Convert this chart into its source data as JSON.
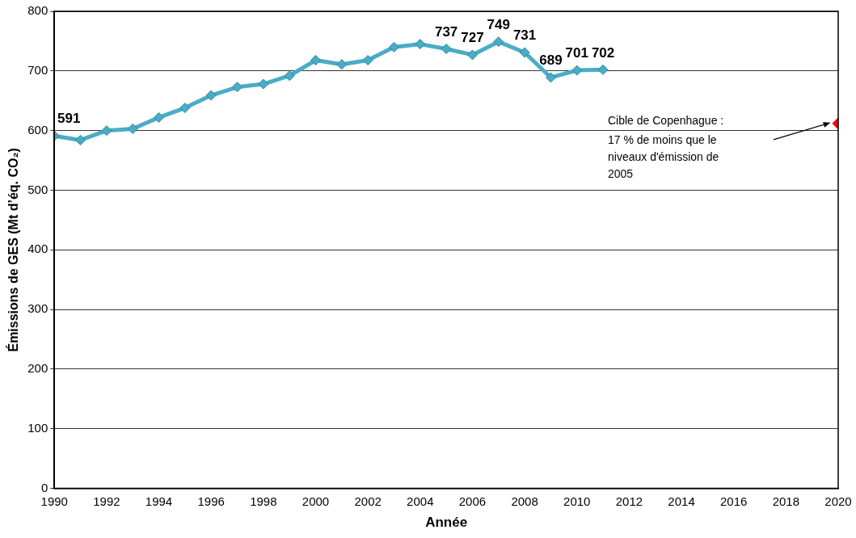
{
  "chart_data": {
    "type": "line",
    "xlabel": "Année",
    "ylabel": "Émissions de GES (Mt d’éq. CO₂)",
    "x": [
      1990,
      1991,
      1992,
      1993,
      1994,
      1995,
      1996,
      1997,
      1998,
      1999,
      2000,
      2001,
      2002,
      2003,
      2004,
      2005,
      2006,
      2007,
      2008,
      2009,
      2010,
      2011
    ],
    "series": [
      {
        "color": "#4bacc6",
        "values": [
          591,
          584,
          600,
          603,
          622,
          638,
          659,
          673,
          678,
          692,
          718,
          711,
          718,
          740,
          745,
          737,
          727,
          749,
          731,
          689,
          701,
          702
        ],
        "value_labels": [
          "591",
          null,
          null,
          null,
          null,
          null,
          null,
          null,
          null,
          null,
          null,
          null,
          null,
          null,
          null,
          "737",
          "727",
          "749",
          "731",
          "689",
          "701",
          "702"
        ]
      },
      {
        "type": "scatter",
        "color": "#ff0000",
        "x": [
          2020
        ],
        "values": [
          612
        ]
      }
    ],
    "xlim": [
      1990,
      2020
    ],
    "xticks": [
      1990,
      1992,
      1994,
      1996,
      1998,
      2000,
      2002,
      2004,
      2006,
      2008,
      2010,
      2012,
      2014,
      2016,
      2018,
      2020
    ],
    "ylim": [
      0,
      800
    ],
    "yticks": [
      0,
      100,
      200,
      300,
      400,
      500,
      600,
      700,
      800
    ],
    "grid": "y",
    "legend": false,
    "marker": "diamond",
    "line_style": "solid",
    "annotations": [
      "Cible de Copenhague :\n17 % de moins que le\nniveaux d'émission de\n2005"
    ]
  }
}
